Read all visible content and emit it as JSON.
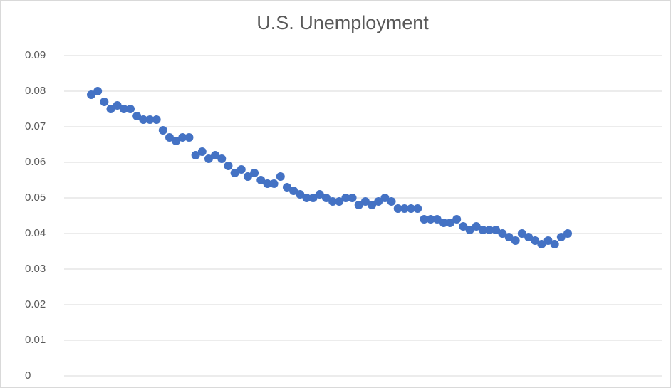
{
  "chart_data": {
    "type": "scatter",
    "title": "U.S. Unemployment",
    "categories": [
      null,
      null,
      null,
      null,
      null,
      null,
      null,
      null,
      null,
      null,
      null,
      null,
      null,
      null,
      null,
      null,
      null,
      null,
      null,
      null,
      null,
      null,
      null,
      null,
      null,
      null,
      null,
      null,
      null,
      null,
      null,
      null,
      null,
      null,
      null,
      null,
      null,
      null,
      null,
      null,
      null,
      null,
      null,
      null,
      null,
      null,
      null,
      null,
      null,
      null,
      null,
      null,
      null,
      null,
      null,
      null,
      null,
      null,
      null,
      null,
      null,
      null,
      null,
      null,
      null,
      null,
      null,
      null,
      null,
      null,
      null,
      null,
      null,
      null
    ],
    "values": [
      0.079,
      0.08,
      0.077,
      0.075,
      0.076,
      0.075,
      0.075,
      0.073,
      0.072,
      0.072,
      0.072,
      0.069,
      0.067,
      0.066,
      0.067,
      0.067,
      0.062,
      0.063,
      0.061,
      0.062,
      0.061,
      0.059,
      0.057,
      0.058,
      0.056,
      0.057,
      0.055,
      0.054,
      0.054,
      0.056,
      0.053,
      0.052,
      0.051,
      0.05,
      0.05,
      0.051,
      0.05,
      0.049,
      0.049,
      0.05,
      0.05,
      0.048,
      0.049,
      0.048,
      0.049,
      0.05,
      0.049,
      0.047,
      0.047,
      0.047,
      0.047,
      0.044,
      0.044,
      0.044,
      0.043,
      0.043,
      0.044,
      0.042,
      0.041,
      0.042,
      0.041,
      0.041,
      0.041,
      0.04,
      0.039,
      0.038,
      0.04,
      0.039,
      0.038,
      0.037,
      0.038,
      0.037,
      0.039,
      0.04
    ],
    "color": "#4472c4",
    "ylim": [
      0,
      0.09
    ],
    "yticks": [
      0,
      0.01,
      0.02,
      0.03,
      0.04,
      0.05,
      0.06,
      0.07,
      0.08,
      0.09
    ],
    "grid": true
  }
}
